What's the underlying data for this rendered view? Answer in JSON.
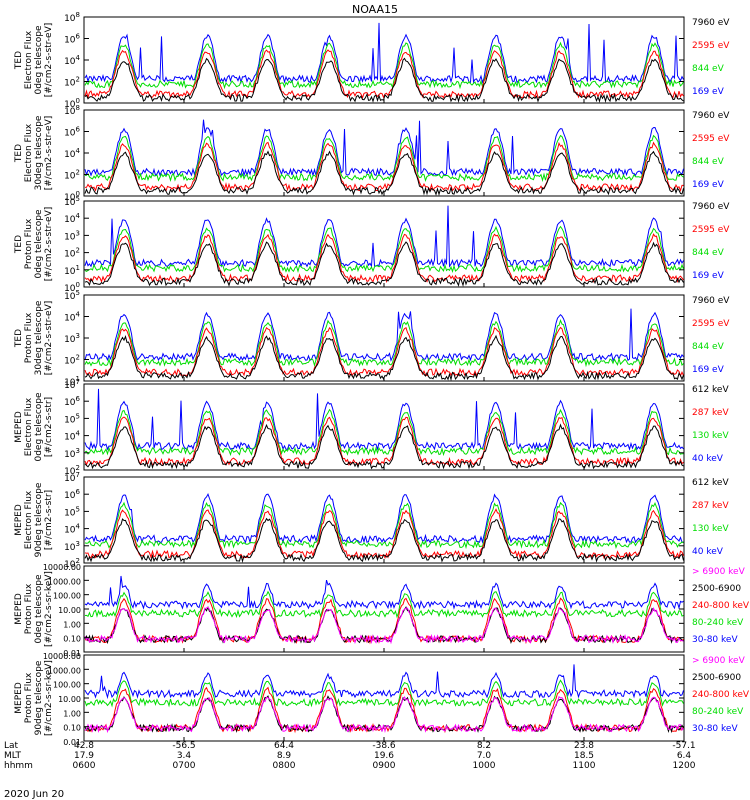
{
  "title": "NOAA15",
  "colors": {
    "black": "#000000",
    "blue": "#0000ff",
    "red": "#ff0000",
    "green": "#00dd00",
    "magenta": "#ff00ff"
  },
  "chart_data": {
    "type": "line",
    "title": "NOAA15",
    "date_label": "2020 Jun 20",
    "x_axis": {
      "row_labels": [
        "Lat",
        "MLT",
        "hhmm"
      ],
      "ticks": [
        {
          "time": "0600",
          "lat": "42.8",
          "mlt": "17.9"
        },
        {
          "time": "0700",
          "lat": "-56.5",
          "mlt": "3.4"
        },
        {
          "time": "0800",
          "lat": "64.4",
          "mlt": "8.9"
        },
        {
          "time": "0900",
          "lat": "-38.6",
          "mlt": "19.6"
        },
        {
          "time": "1000",
          "lat": "8.2",
          "mlt": "7.0"
        },
        {
          "time": "1100",
          "lat": "23.8",
          "mlt": "18.5"
        },
        {
          "time": "1200",
          "lat": "-57.1",
          "mlt": "6.4"
        }
      ]
    },
    "panels": [
      {
        "ylabel": [
          "TED",
          "Electron Flux",
          "0deg telescope",
          "[#/cm2-s-str-eV]"
        ],
        "ticks": [
          "10^0",
          "10^2",
          "10^4",
          "10^6",
          "10^8"
        ],
        "log_range": [
          0,
          8
        ],
        "legend": [
          {
            "label": "7960 eV",
            "color": "#000000"
          },
          {
            "label": "2595 eV",
            "color": "#ff0000"
          },
          {
            "label": "844 eV",
            "color": "#00dd00"
          },
          {
            "label": "169 eV",
            "color": "#0000ff"
          }
        ]
      },
      {
        "ylabel": [
          "TED",
          "Electron Flux",
          "30deg telescope",
          "[#/cm2-s-str-eV]"
        ],
        "ticks": [
          "10^0",
          "10^2",
          "10^4",
          "10^6",
          "10^8"
        ],
        "log_range": [
          0,
          8
        ],
        "legend": [
          {
            "label": "7960 eV",
            "color": "#000000"
          },
          {
            "label": "2595 eV",
            "color": "#ff0000"
          },
          {
            "label": "844 eV",
            "color": "#00dd00"
          },
          {
            "label": "169 eV",
            "color": "#0000ff"
          }
        ]
      },
      {
        "ylabel": [
          "TED",
          "Proton Flux",
          "0deg telescope",
          "[#/cm2-s-str-eV]"
        ],
        "ticks": [
          "10^0",
          "10^1",
          "10^2",
          "10^3",
          "10^4",
          "10^5"
        ],
        "log_range": [
          0,
          5
        ],
        "legend": [
          {
            "label": "7960 eV",
            "color": "#000000"
          },
          {
            "label": "2595 eV",
            "color": "#ff0000"
          },
          {
            "label": "844 eV",
            "color": "#00dd00"
          },
          {
            "label": "169 eV",
            "color": "#0000ff"
          }
        ]
      },
      {
        "ylabel": [
          "TED",
          "Proton Flux",
          "30deg telescope",
          "[#/cm2-s-str-eV]"
        ],
        "ticks": [
          "10^1",
          "10^2",
          "10^3",
          "10^4",
          "10^5"
        ],
        "log_range": [
          0.5,
          5
        ],
        "legend": [
          {
            "label": "7960 eV",
            "color": "#000000"
          },
          {
            "label": "2595 eV",
            "color": "#ff0000"
          },
          {
            "label": "844 eV",
            "color": "#00dd00"
          },
          {
            "label": "169 eV",
            "color": "#0000ff"
          }
        ]
      },
      {
        "ylabel": [
          "MEPED",
          "Electron Flux",
          "0deg telescope",
          "[#/cm2-s-str]"
        ],
        "ticks": [
          "10^2",
          "10^3",
          "10^4",
          "10^5",
          "10^6",
          "10^7"
        ],
        "log_range": [
          2,
          7
        ],
        "legend": [
          {
            "label": "612 keV",
            "color": "#000000"
          },
          {
            "label": "287 keV",
            "color": "#ff0000"
          },
          {
            "label": "130 keV",
            "color": "#00dd00"
          },
          {
            "label": "40 keV",
            "color": "#0000ff"
          }
        ]
      },
      {
        "ylabel": [
          "MEPED",
          "Electron Flux",
          "90deg telescope",
          "[#/cm2-s-str]"
        ],
        "ticks": [
          "10^2",
          "10^3",
          "10^4",
          "10^5",
          "10^6",
          "10^7"
        ],
        "log_range": [
          2,
          7
        ],
        "legend": [
          {
            "label": "612 keV",
            "color": "#000000"
          },
          {
            "label": "287 keV",
            "color": "#ff0000"
          },
          {
            "label": "130 keV",
            "color": "#00dd00"
          },
          {
            "label": "40 keV",
            "color": "#0000ff"
          }
        ]
      },
      {
        "ylabel": [
          "MEPED",
          "Proton Flux",
          "0deg telescope",
          "[#/cm2-s-sr-keV]"
        ],
        "ticks": [
          "0.01",
          "0.10",
          "1.00",
          "10.00",
          "100.00",
          "1000.00",
          "10000.00"
        ],
        "log_range": [
          -2,
          4
        ],
        "legend": [
          {
            "label": "> 6900 keV",
            "color": "#ff00ff"
          },
          {
            "label": "2500-6900",
            "color": "#000000"
          },
          {
            "label": "240-800 keV",
            "color": "#ff0000"
          },
          {
            "label": "80-240 keV",
            "color": "#00dd00"
          },
          {
            "label": "30-80 keV",
            "color": "#0000ff"
          }
        ]
      },
      {
        "ylabel": [
          "MEPED",
          "Proton Flux",
          "90deg telescope",
          "[#/cm2-s-sr-keV]"
        ],
        "ticks": [
          "0.01",
          "0.10",
          "1.00",
          "10.00",
          "100.00",
          "1000.00",
          "10000.00"
        ],
        "log_range": [
          -2,
          4
        ],
        "legend": [
          {
            "label": "> 6900 keV",
            "color": "#ff00ff"
          },
          {
            "label": "2500-6900",
            "color": "#000000"
          },
          {
            "label": "240-800 keV",
            "color": "#ff0000"
          },
          {
            "label": "80-240 keV",
            "color": "#00dd00"
          },
          {
            "label": "30-80 keV",
            "color": "#0000ff"
          }
        ]
      }
    ],
    "radiation_belt_passes_approx_hhmm": [
      "0624",
      "0714",
      "0750",
      "0827",
      "0913",
      "1007",
      "1046",
      "1142"
    ]
  }
}
